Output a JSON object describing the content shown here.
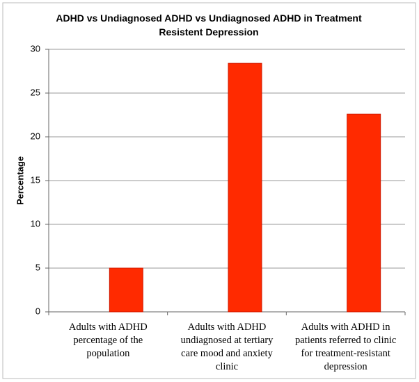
{
  "chart_data": {
    "type": "bar",
    "title": "ADHD vs Undiagnosed ADHD vs Undiagnosed ADHD in Treatment Resistent Depression",
    "y_label": "Percentage",
    "categories": [
      "Adults with ADHD percentage of the population",
      "Adults with ADHD undiagnosed at tertiary care mood and anxiety clinic",
      "Adults with ADHD in patients referred to clinic for treatment-resistant depression"
    ],
    "values": [
      5,
      28.4,
      22.6
    ],
    "color": "#ff2a00",
    "ylim": [
      0,
      30
    ],
    "yticks": [
      0,
      5,
      10,
      15,
      20,
      25,
      30
    ],
    "grid": true
  }
}
